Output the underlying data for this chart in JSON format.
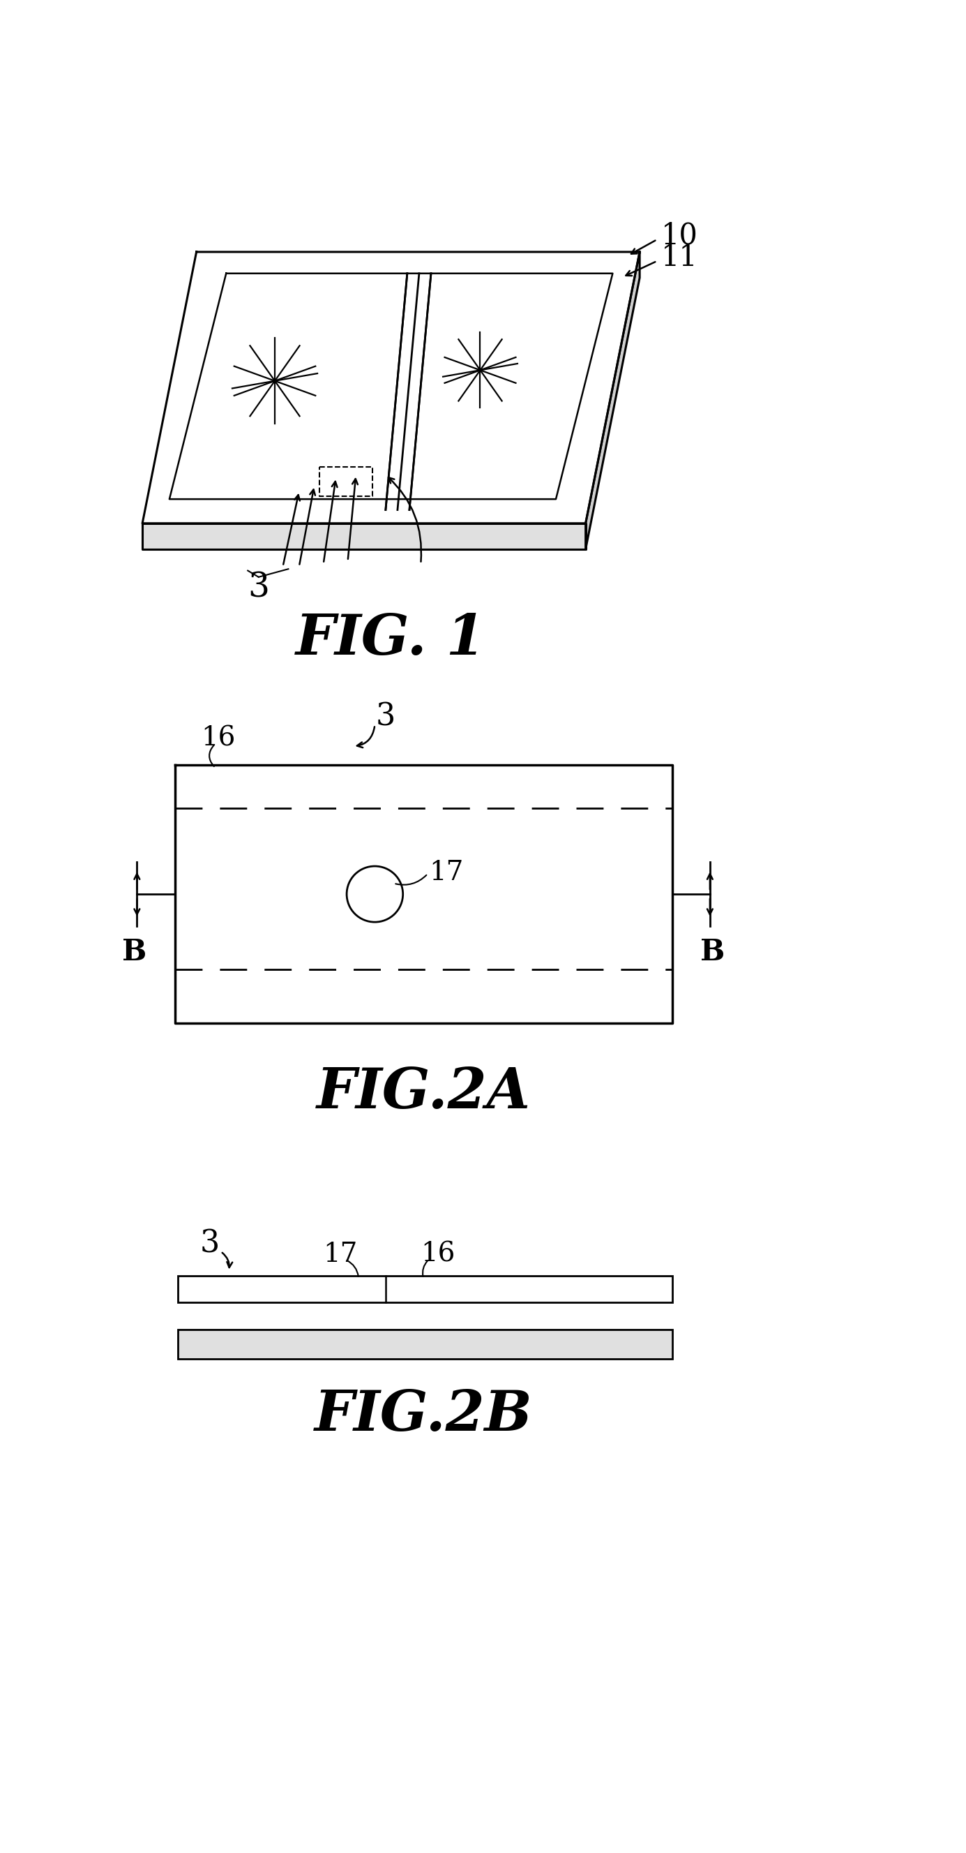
{
  "bg_color": "#ffffff",
  "line_color": "#000000",
  "fig1_label": "FIG. 1",
  "fig2a_label": "FIG.2A",
  "fig2b_label": "FIG.2B",
  "label_10": "10",
  "label_11": "11",
  "label_3": "3",
  "label_16": "16",
  "label_17": "17",
  "label_B": "B",
  "fig_width": 1385,
  "fig_height": 2655
}
